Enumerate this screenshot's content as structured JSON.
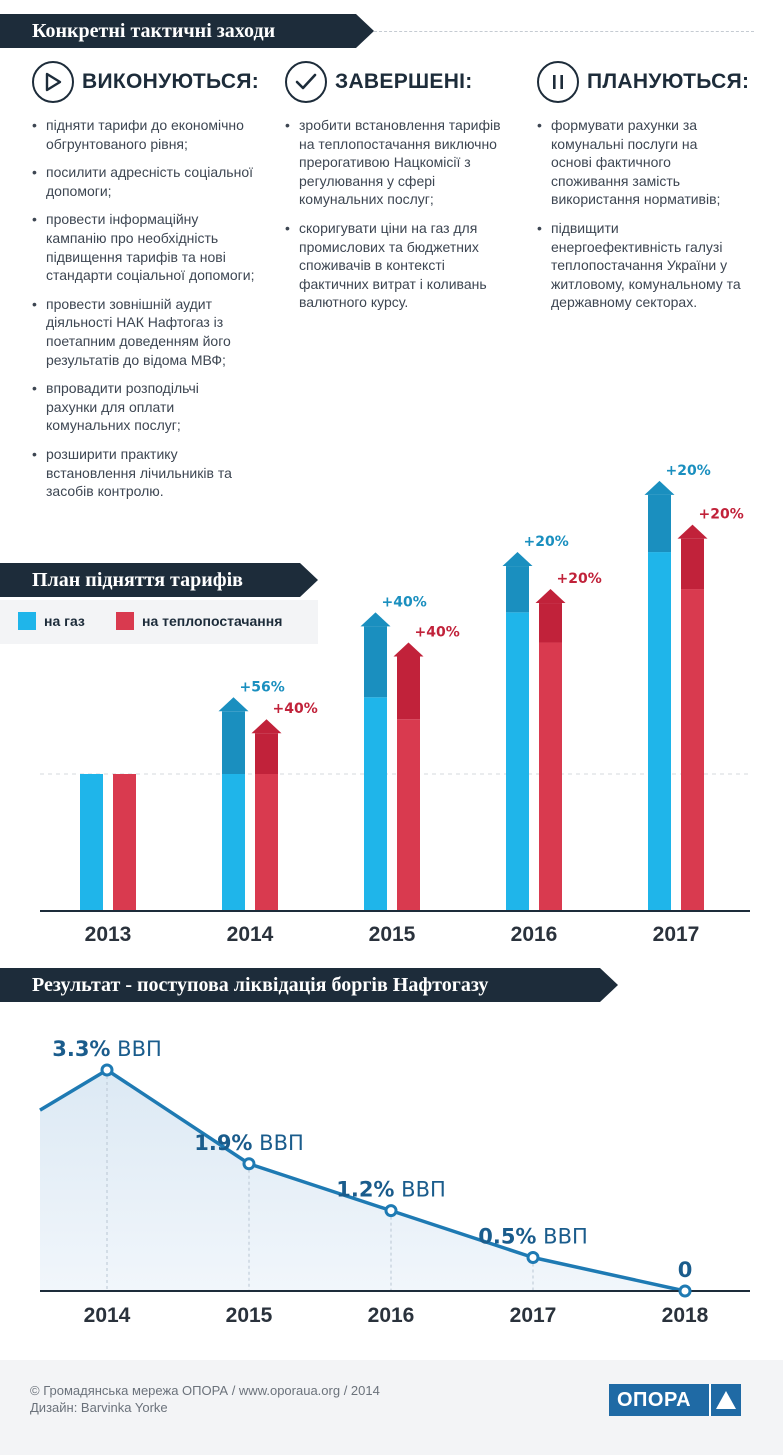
{
  "section1": {
    "title": "Конкретні тактичні заходи",
    "columns": [
      {
        "icon": "play-icon",
        "title": "ВИКОНУЮТЬСЯ:",
        "items": [
          "підняти тарифи до економічно\nобгрунтованого рівня;",
          "посилити адресність соціальної\nдопомоги;",
          "провести інформаційну\nкампанію про необхідність\nпідвищення тарифів та нові\nстандарти соціальної допомоги;",
          "провести зовнішній аудит\nдіяльності НАК Нафтогаз  із\nпоетапним доведенням його\nрезультатів до відома МВФ;",
          "впровадити розподільчі\nрахунки для оплати\nкомунальних послуг;",
          "розширити практику\nвстановлення лічильників та\nзасобів контролю."
        ]
      },
      {
        "icon": "check-icon",
        "title": "ЗАВЕРШЕНІ:",
        "items": [
          "зробити встановлення тарифів\nна теплопостачання виключно\nпрерогативою Нацкомісії з\nрегулювання у сфері\nкомунальних послуг;",
          "скоригувати ціни на газ для\nпромислових та бюджетних\nспоживачів в контексті\nфактичних витрат і коливань\nвалютного курсу."
        ]
      },
      {
        "icon": "pause-icon",
        "title": "ПЛАНУЮТЬСЯ:",
        "items": [
          "формувати рахунки за\nкомунальні послуги на\nоснові фактичного\nспоживання замість\nвикористання нормативів;",
          "підвищити\nенергоефективність галузі\nтеплопостачання України у\nжитловому, комунальному та\nдержавному секторах."
        ]
      }
    ]
  },
  "section2": {
    "title": "План підняття тарифів",
    "legend": [
      {
        "label": "на газ",
        "color": "#1fb5ea"
      },
      {
        "label": "на теплопостачання",
        "color": "#d93a4f"
      }
    ]
  },
  "section3": {
    "title": "Результат - поступова ліквідація боргів Нафтогазу"
  },
  "chart_data": [
    {
      "type": "bar",
      "categories": [
        "2013",
        "2014",
        "2015",
        "2016",
        "2017"
      ],
      "series": [
        {
          "name": "на газ",
          "values": [
            1,
            1.56,
            2.18,
            2.62,
            3.14
          ],
          "increase_labels": [
            "",
            "+56%",
            "+40%",
            "+20%",
            "+20%"
          ],
          "color": "#1fb5ea",
          "increase_color": "#1a8fbf"
        },
        {
          "name": "на теплопостачання",
          "values": [
            1,
            1.4,
            1.96,
            2.35,
            2.82
          ],
          "increase_labels": [
            "",
            "+40%",
            "+40%",
            "+20%",
            "+20%"
          ],
          "color": "#d93a4f",
          "increase_color": "#c1223a"
        }
      ],
      "ylim": [
        0,
        3.5
      ],
      "grid": false
    },
    {
      "type": "area",
      "x": [
        "2014",
        "2015",
        "2016",
        "2017",
        "2018"
      ],
      "values": [
        3.3,
        1.9,
        1.2,
        0.5,
        0
      ],
      "lead_in_value": 2.7,
      "labels": [
        {
          "num": "3.3%",
          "unit": " ВВП"
        },
        {
          "num": "1.9%",
          "unit": " ВВП"
        },
        {
          "num": "1.2%",
          "unit": " ВВП"
        },
        {
          "num": "0.5%",
          "unit": " ВВП"
        },
        {
          "num": "0",
          "unit": ""
        }
      ],
      "ylim": [
        0,
        3.3
      ],
      "color": "#1e7ab3",
      "label_color": "#1a5c8c"
    }
  ],
  "footer": {
    "line1": "©  Громадянська мережа ОПОРА  /  www.oporaua.org  /  2014",
    "line2": "Дизайн: Barvinka Yorke",
    "logo_text": "ОПОРА"
  }
}
